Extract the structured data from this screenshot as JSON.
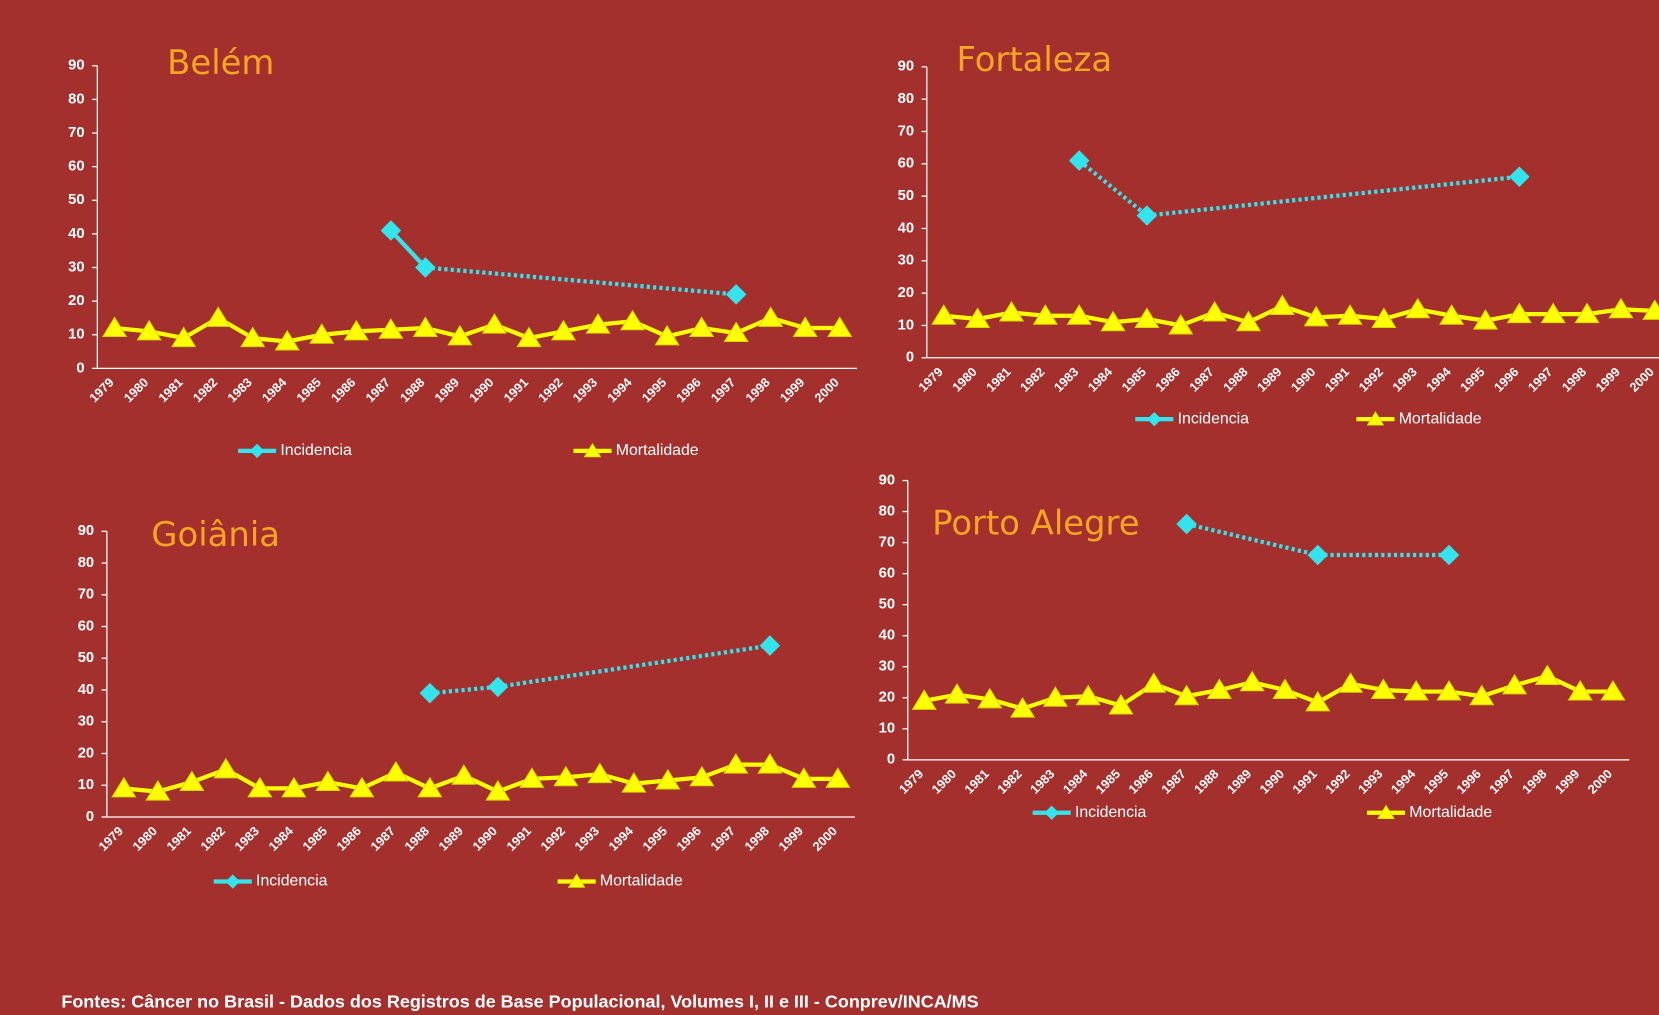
{
  "footer": "Fontes: Câncer no Brasil - Dados dos Registros de Base Populacional, Volumes I, II e III  - Conprev/INCA/MS",
  "chart_data": [
    {
      "type": "line",
      "title": "Belém",
      "categories": [
        "1979",
        "1980",
        "1981",
        "1982",
        "1983",
        "1984",
        "1985",
        "1986",
        "1987",
        "1988",
        "1989",
        "1990",
        "1991",
        "1992",
        "1993",
        "1994",
        "1995",
        "1996",
        "1997",
        "1998",
        "1999",
        "2000"
      ],
      "series": [
        {
          "name": "Incidencia",
          "color": "#33e4ec",
          "marker": "diamond",
          "values": [
            null,
            null,
            null,
            null,
            null,
            null,
            null,
            null,
            41,
            30,
            null,
            null,
            null,
            null,
            null,
            null,
            null,
            null,
            22,
            null,
            null,
            null
          ]
        },
        {
          "name": "Mortalidade",
          "color": "#ffff00",
          "marker": "triangle",
          "values": [
            12,
            11,
            9,
            15,
            9,
            8,
            10,
            11,
            11.5,
            12,
            9.5,
            13,
            9,
            11,
            13,
            14,
            9.5,
            12,
            10.5,
            15,
            12,
            12
          ]
        }
      ],
      "ylim": [
        0,
        90
      ],
      "yticks": [
        0,
        10,
        20,
        30,
        40,
        50,
        60,
        70,
        80,
        90
      ],
      "legend": "bottom"
    },
    {
      "type": "line",
      "title": "Fortaleza",
      "categories": [
        "1979",
        "1980",
        "1981",
        "1982",
        "1983",
        "1984",
        "1985",
        "1986",
        "1987",
        "1988",
        "1989",
        "1990",
        "1991",
        "1992",
        "1993",
        "1994",
        "1995",
        "1996",
        "1997",
        "1998",
        "1999",
        "2000"
      ],
      "series": [
        {
          "name": "Incidencia",
          "color": "#33e4ec",
          "marker": "diamond",
          "values": [
            null,
            null,
            null,
            null,
            61,
            null,
            44,
            null,
            null,
            null,
            null,
            null,
            null,
            null,
            null,
            null,
            null,
            56,
            null,
            null,
            null,
            null
          ]
        },
        {
          "name": "Mortalidade",
          "color": "#ffff00",
          "marker": "triangle",
          "values": [
            13,
            12,
            14,
            13,
            13,
            11,
            12,
            10,
            14,
            11,
            16,
            12.5,
            13,
            12,
            15,
            13,
            11.5,
            13.5,
            13.5,
            13.5,
            15,
            14.5
          ]
        }
      ],
      "ylim": [
        0,
        90
      ],
      "yticks": [
        0,
        10,
        20,
        30,
        40,
        50,
        60,
        70,
        80,
        90
      ],
      "legend": "bottom"
    },
    {
      "type": "line",
      "title": "Goiânia",
      "categories": [
        "1979",
        "1980",
        "1981",
        "1982",
        "1983",
        "1984",
        "1985",
        "1986",
        "1987",
        "1988",
        "1989",
        "1990",
        "1991",
        "1992",
        "1993",
        "1994",
        "1995",
        "1996",
        "1997",
        "1998",
        "1999",
        "2000"
      ],
      "series": [
        {
          "name": "Incidencia",
          "color": "#33e4ec",
          "marker": "diamond",
          "values": [
            null,
            null,
            null,
            null,
            null,
            null,
            null,
            null,
            null,
            39,
            null,
            41,
            null,
            null,
            null,
            null,
            null,
            null,
            null,
            54,
            null,
            null
          ]
        },
        {
          "name": "Mortalidade",
          "color": "#ffff00",
          "marker": "triangle",
          "values": [
            9,
            8,
            11,
            15,
            9,
            9,
            11,
            9,
            14,
            9,
            13,
            8,
            12,
            12.5,
            13.5,
            10.5,
            11.5,
            12.5,
            16.5,
            16.5,
            12,
            12
          ]
        }
      ],
      "ylim": [
        0,
        90
      ],
      "yticks": [
        0,
        10,
        20,
        30,
        40,
        50,
        60,
        70,
        80,
        90
      ],
      "legend": "bottom"
    },
    {
      "type": "line",
      "title": "Porto Alegre",
      "categories": [
        "1979",
        "1980",
        "1981",
        "1982",
        "1983",
        "1984",
        "1985",
        "1986",
        "1987",
        "1988",
        "1989",
        "1990",
        "1991",
        "1992",
        "1993",
        "1994",
        "1995",
        "1996",
        "1997",
        "1998",
        "1999",
        "2000"
      ],
      "series": [
        {
          "name": "Incidencia",
          "color": "#33e4ec",
          "marker": "diamond",
          "values": [
            null,
            null,
            null,
            null,
            null,
            null,
            null,
            null,
            76,
            null,
            null,
            null,
            66,
            null,
            null,
            null,
            66,
            null,
            null,
            null,
            null,
            null
          ]
        },
        {
          "name": "Mortalidade",
          "color": "#ffff00",
          "marker": "triangle",
          "values": [
            19,
            21,
            19.5,
            16.5,
            20,
            20.5,
            17.5,
            24.5,
            20.5,
            22.5,
            25,
            22.5,
            18.5,
            24.5,
            22.5,
            22,
            22,
            20.5,
            24,
            27,
            22,
            22
          ]
        }
      ],
      "ylim": [
        0,
        90
      ],
      "yticks": [
        0,
        10,
        20,
        30,
        40,
        50,
        60,
        70,
        80,
        90
      ],
      "legend": "bottom"
    }
  ]
}
